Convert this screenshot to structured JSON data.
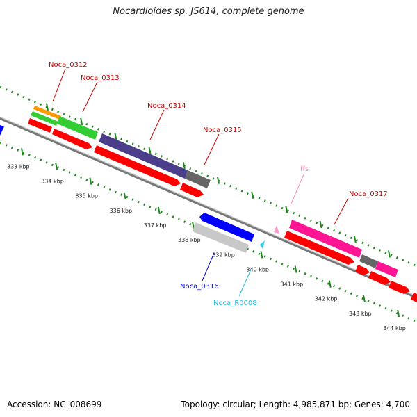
{
  "title": "Nocardioides sp. JS614, complete genome",
  "footer": {
    "accession": "Accession: NC_008699",
    "topology": "Topology: circular; Length: 4,985,871 bp; Genes: 4,700"
  },
  "colors": {
    "backbone": "#8c8c8c",
    "tick": "#1e8a1e",
    "cds": "#ff0000",
    "orange": "#ff9900",
    "green": "#33cc33",
    "purple": "#4b3f8c",
    "gray": "#666666",
    "blue": "#0000ff",
    "lightgray": "#c8c8c8",
    "magenta": "#ff1493",
    "pink": "#ff99cc",
    "cyan": "#33ccee"
  },
  "kbp_labels": [
    "333 kbp",
    "334 kbp",
    "335 kbp",
    "336 kbp",
    "337 kbp",
    "338 kbp",
    "339 kbp",
    "340 kbp",
    "341 kbp",
    "342 kbp",
    "343 kbp",
    "344 kbp"
  ],
  "gene_labels": [
    {
      "text": "Noca_0312",
      "color": "#cc0000"
    },
    {
      "text": "Noca_0313",
      "color": "#cc0000"
    },
    {
      "text": "Noca_0314",
      "color": "#cc0000"
    },
    {
      "text": "Noca_0315",
      "color": "#cc0000"
    },
    {
      "text": "ffs",
      "color": "#ff88bb"
    },
    {
      "text": "Noca_0317",
      "color": "#cc0000"
    },
    {
      "text": "Noca_0316",
      "color": "#0000cc"
    },
    {
      "text": "Noca_R0008",
      "color": "#22bbdd"
    }
  ]
}
